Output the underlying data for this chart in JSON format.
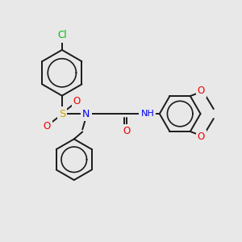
{
  "background_color": "#e8e8e8",
  "bond_color": "#1a1a1a",
  "atom_colors": {
    "Cl": "#00bb00",
    "S": "#ccaa00",
    "N": "#0000ee",
    "O": "#ee0000",
    "H": "#009999",
    "C": "#1a1a1a"
  },
  "figsize": [
    3.0,
    3.0
  ],
  "dpi": 100
}
